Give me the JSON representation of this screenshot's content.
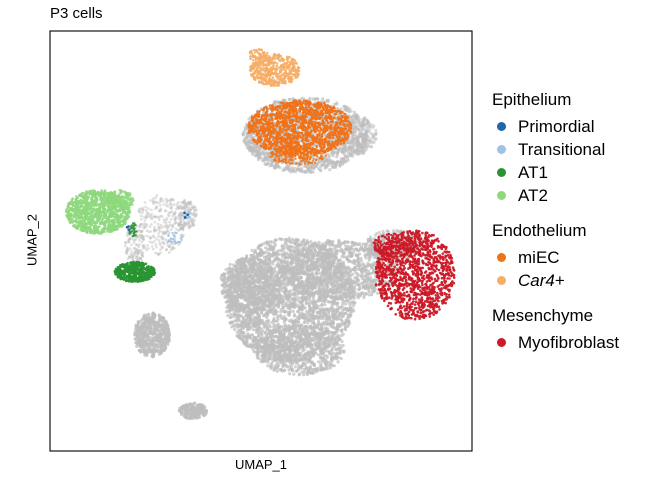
{
  "chart_data": {
    "type": "scatter",
    "title": "P3 cells",
    "xlabel": "UMAP_1",
    "ylabel": "UMAP_2",
    "grid": false,
    "legend_position": "right",
    "background_color": "#bdbdbd",
    "legend_groups": [
      {
        "title": "Epithelium",
        "items": [
          {
            "label": "Primordial",
            "color": "#2166ac",
            "italic_part": "",
            "suffix": ""
          },
          {
            "label": "Transitional",
            "color": "#9ec3e6",
            "italic_part": "",
            "suffix": ""
          },
          {
            "label": "AT1",
            "color": "#2a9434",
            "italic_part": "",
            "suffix": ""
          },
          {
            "label": "AT2",
            "color": "#8ed87d",
            "italic_part": "",
            "suffix": ""
          }
        ]
      },
      {
        "title": "Endothelium",
        "items": [
          {
            "label": "miEC",
            "color": "#f07218",
            "italic_part": "",
            "suffix": ""
          },
          {
            "label": "",
            "color": "#f6ad66",
            "italic_part": "Car4",
            "suffix": "+"
          }
        ]
      },
      {
        "title": "Mesenchyme",
        "items": [
          {
            "label": "Myofibroblast",
            "color": "#cc1a28",
            "italic_part": "",
            "suffix": ""
          }
        ]
      }
    ]
  }
}
